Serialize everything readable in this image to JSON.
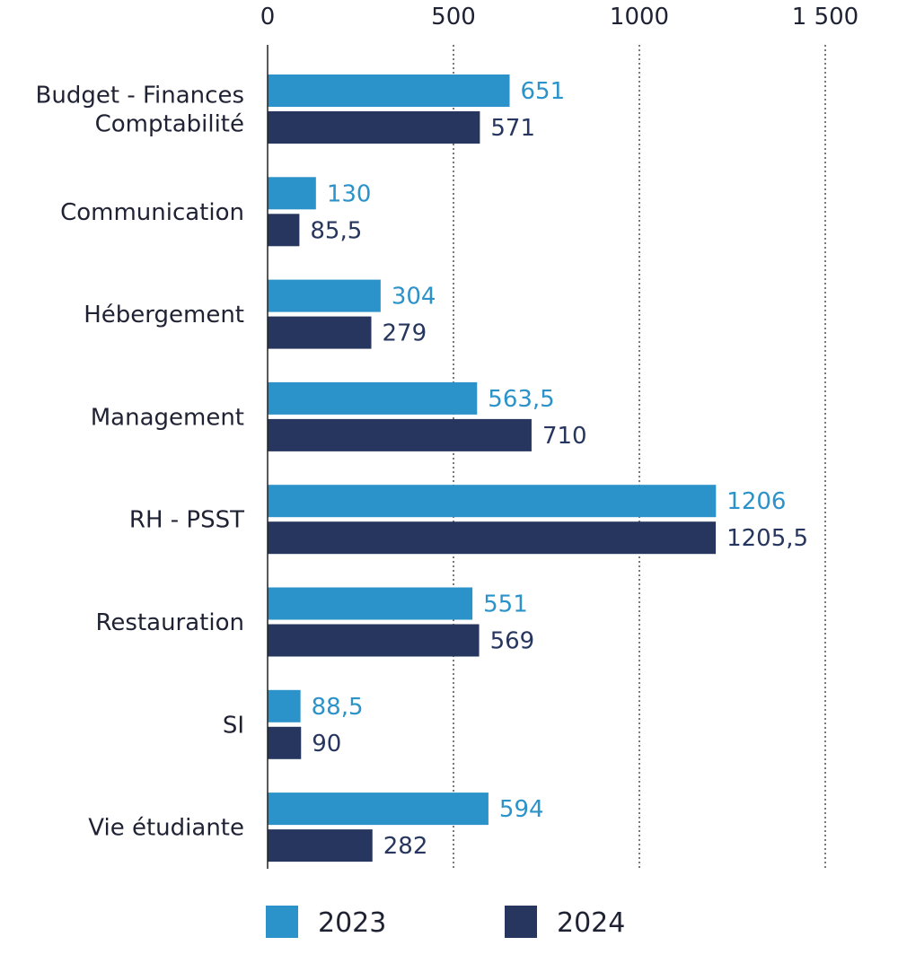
{
  "chart_data": {
    "type": "bar",
    "orientation": "horizontal",
    "categories": [
      [
        "Budget - Finances",
        "Comptabilité"
      ],
      [
        "Communication"
      ],
      [
        "Hébergement"
      ],
      [
        "Management"
      ],
      [
        "RH - PSST"
      ],
      [
        "Restauration"
      ],
      [
        "SI"
      ],
      [
        "Vie étudiante"
      ]
    ],
    "series": [
      {
        "name": "2023",
        "color": "#2b93c9",
        "values": [
          651,
          130,
          304,
          563.5,
          1206,
          551,
          88.5,
          594
        ],
        "labels": [
          "651",
          "130",
          "304",
          "563,5",
          "1206",
          "551",
          "88,5",
          "594"
        ]
      },
      {
        "name": "2024",
        "color": "#27365e",
        "values": [
          571,
          85.5,
          279,
          710,
          1205.5,
          569,
          90,
          282
        ],
        "labels": [
          "571",
          "85,5",
          "279",
          "710",
          "1205,5",
          "569",
          "90",
          "282"
        ]
      }
    ],
    "xlim": [
      0,
      1500
    ],
    "ticks": [
      0,
      500,
      1000,
      1500
    ],
    "tick_labels": [
      "0",
      "500",
      "1000",
      "1 500"
    ],
    "grid": "vertical dotted",
    "legend_position": "bottom"
  }
}
